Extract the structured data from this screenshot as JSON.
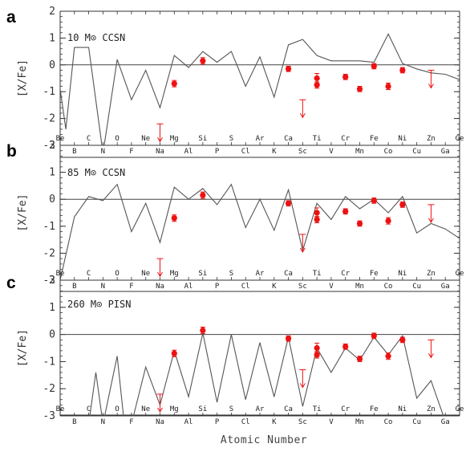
{
  "figure": {
    "xlabel": "Atomic Number"
  },
  "chart_data": [
    {
      "type": "line",
      "panel": "a",
      "label": "10 M⊙ CCSN",
      "ylabel": "[X/Fe]",
      "xlim": [
        4,
        32
      ],
      "ylim": [
        -3,
        2
      ],
      "yticks": [
        2,
        1,
        0,
        -1,
        -2,
        -3
      ],
      "x_element_labels": {
        "4": "Be",
        "5": "B",
        "6": "C",
        "7": "N",
        "8": "O",
        "9": "F",
        "10": "Ne",
        "11": "Na",
        "12": "Mg",
        "13": "Al",
        "14": "Si",
        "15": "P",
        "16": "S",
        "17": "Cl",
        "18": "Ar",
        "19": "K",
        "20": "Ca",
        "21": "Sc",
        "22": "Ti",
        "23": "V",
        "24": "Cr",
        "25": "Mn",
        "26": "Fe",
        "27": "Co",
        "28": "Ni",
        "29": "Cu",
        "30": "Zn",
        "31": "Ga",
        "32": "Ge"
      },
      "model": {
        "x": [
          4,
          4.4,
          5,
          6,
          7,
          8,
          9,
          10,
          11,
          12,
          13,
          14,
          15,
          16,
          17,
          18,
          19,
          20,
          21,
          22,
          23,
          24,
          25,
          26,
          27,
          28,
          29,
          30,
          31,
          32
        ],
        "y": [
          -0.9,
          -2.4,
          0.65,
          0.65,
          -3.3,
          0.2,
          -1.3,
          -0.2,
          -1.6,
          0.35,
          -0.1,
          0.5,
          0.1,
          0.5,
          -0.8,
          0.3,
          -1.2,
          0.75,
          0.95,
          0.35,
          0.15,
          0.15,
          0.15,
          0.1,
          1.15,
          0.05,
          -0.15,
          -0.3,
          -0.35,
          -0.55
        ]
      },
      "observed": {
        "x": [
          12,
          14,
          20,
          22,
          22,
          24,
          25,
          26,
          27,
          28
        ],
        "y": [
          -0.7,
          0.15,
          -0.15,
          -0.5,
          -0.75,
          -0.45,
          -0.9,
          -0.05,
          -0.8,
          -0.2
        ],
        "yerr": [
          0.12,
          0.12,
          0.1,
          0.18,
          0.12,
          0.1,
          0.1,
          0.1,
          0.12,
          0.1
        ]
      },
      "upper_limits": {
        "x": [
          11,
          21,
          30
        ],
        "y": [
          -2.2,
          -1.3,
          -0.2
        ]
      }
    },
    {
      "type": "line",
      "panel": "b",
      "label": "85 M⊙ CCSN",
      "ylabel": "[X/Fe]",
      "xlim": [
        4,
        32
      ],
      "ylim": [
        -3,
        2
      ],
      "yticks": [
        2,
        1,
        0,
        -1,
        -2,
        -3
      ],
      "x_element_labels": {
        "4": "Be",
        "5": "B",
        "6": "C",
        "7": "N",
        "8": "O",
        "9": "F",
        "10": "Ne",
        "11": "Na",
        "12": "Mg",
        "13": "Al",
        "14": "Si",
        "15": "P",
        "16": "S",
        "17": "Cl",
        "18": "Ar",
        "19": "K",
        "20": "Ca",
        "21": "Sc",
        "22": "Ti",
        "23": "V",
        "24": "Cr",
        "25": "Mn",
        "26": "Fe",
        "27": "Co",
        "28": "Ni",
        "29": "Cu",
        "30": "Zn",
        "31": "Ga",
        "32": "Ge"
      },
      "model": {
        "x": [
          4,
          5,
          6,
          7,
          8,
          9,
          10,
          11,
          12,
          13,
          14,
          15,
          16,
          17,
          18,
          19,
          20,
          21,
          22,
          23,
          24,
          25,
          26,
          27,
          28,
          29,
          30,
          31,
          32
        ],
        "y": [
          -3.0,
          -0.65,
          0.1,
          -0.05,
          0.55,
          -1.2,
          -0.15,
          -1.6,
          0.45,
          0.0,
          0.4,
          -0.2,
          0.55,
          -1.05,
          0.0,
          -1.15,
          0.35,
          -1.9,
          -0.15,
          -0.75,
          0.1,
          -0.35,
          0.0,
          -0.5,
          0.1,
          -1.25,
          -0.9,
          -1.1,
          -1.45
        ]
      },
      "observed": {
        "x": [
          12,
          14,
          20,
          22,
          22,
          24,
          25,
          26,
          27,
          28
        ],
        "y": [
          -0.7,
          0.15,
          -0.15,
          -0.5,
          -0.75,
          -0.45,
          -0.9,
          -0.05,
          -0.8,
          -0.2
        ],
        "yerr": [
          0.12,
          0.12,
          0.1,
          0.18,
          0.12,
          0.1,
          0.1,
          0.1,
          0.12,
          0.1
        ]
      },
      "upper_limits": {
        "x": [
          11,
          21,
          30
        ],
        "y": [
          -2.2,
          -1.3,
          -0.2
        ]
      }
    },
    {
      "type": "line",
      "panel": "c",
      "label": "260 M⊙ PISN",
      "ylabel": "[X/Fe]",
      "xlim": [
        4,
        32
      ],
      "ylim": [
        -3,
        2
      ],
      "yticks": [
        2,
        1,
        0,
        -1,
        -2,
        -3
      ],
      "x_element_labels": {
        "4": "Be",
        "5": "B",
        "6": "C",
        "7": "N",
        "8": "O",
        "9": "F",
        "10": "Ne",
        "11": "Na",
        "12": "Mg",
        "13": "Al",
        "14": "Si",
        "15": "P",
        "16": "S",
        "17": "Cl",
        "18": "Ar",
        "19": "K",
        "20": "Ca",
        "21": "Sc",
        "22": "Ti",
        "23": "V",
        "24": "Cr",
        "25": "Mn",
        "26": "Fe",
        "27": "Co",
        "28": "Ni",
        "29": "Cu",
        "30": "Zn",
        "31": "Ga",
        "32": "Ge"
      },
      "model": {
        "x": [
          6,
          6.5,
          7,
          8,
          8.5,
          9,
          10,
          11,
          12,
          13,
          14,
          15,
          16,
          17,
          18,
          19,
          20,
          21,
          22,
          23,
          24,
          25,
          26,
          27,
          28,
          29,
          30,
          31,
          31.3
        ],
        "y": [
          -3.3,
          -1.4,
          -3.3,
          -0.8,
          -3.3,
          -3.3,
          -1.2,
          -2.6,
          -0.6,
          -2.3,
          0.05,
          -2.5,
          0.0,
          -2.4,
          -0.3,
          -2.3,
          -0.1,
          -2.65,
          -0.5,
          -1.4,
          -0.5,
          -0.95,
          -0.1,
          -0.75,
          -0.05,
          -2.35,
          -1.7,
          -3.2,
          -3.3
        ]
      },
      "observed": {
        "x": [
          12,
          14,
          20,
          22,
          22,
          24,
          25,
          26,
          27,
          28
        ],
        "y": [
          -0.7,
          0.15,
          -0.15,
          -0.5,
          -0.75,
          -0.45,
          -0.9,
          -0.05,
          -0.8,
          -0.2
        ],
        "yerr": [
          0.12,
          0.12,
          0.1,
          0.18,
          0.12,
          0.1,
          0.1,
          0.1,
          0.12,
          0.1
        ]
      },
      "upper_limits": {
        "x": [
          11,
          21,
          30
        ],
        "y": [
          -2.2,
          -1.3,
          -0.2
        ]
      }
    }
  ],
  "colors": {
    "model_line": "#555555",
    "observed": "#ee1111",
    "axis": "#333333",
    "zero_line": "#444444"
  }
}
